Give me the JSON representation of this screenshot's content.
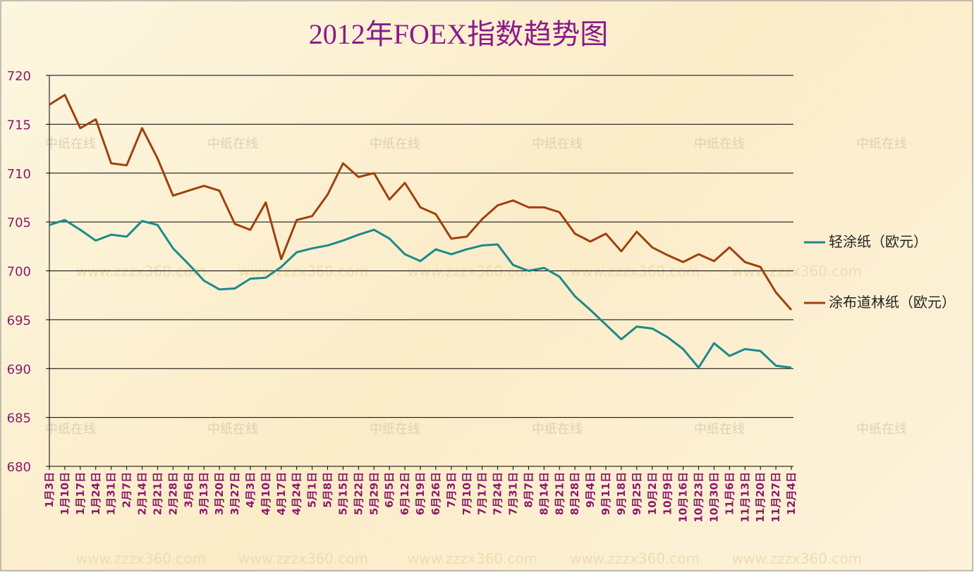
{
  "chart_data": {
    "type": "line",
    "title": "2012年FOEX指数趋势图",
    "categories": [
      "1月3日",
      "1月10日",
      "1月17日",
      "1月24日",
      "1月31日",
      "2月7日",
      "2月14日",
      "2月21日",
      "2月28日",
      "3月6日",
      "3月13日",
      "3月20日",
      "3月27日",
      "4月3日",
      "4月10日",
      "4月17日",
      "4月24日",
      "5月1日",
      "5月8日",
      "5月15日",
      "5月22日",
      "5月29日",
      "6月5日",
      "6月12日",
      "6月19日",
      "6月26日",
      "7月3日",
      "7月10日",
      "7月17日",
      "7月24日",
      "7月31日",
      "8月7日",
      "8月14日",
      "8月21日",
      "8月28日",
      "9月4日",
      "9月11日",
      "9月18日",
      "9月25日",
      "10月2日",
      "10月9日",
      "10月16日",
      "10月23日",
      "10月30日",
      "11月6日",
      "11月13日",
      "11月20日",
      "11月27日",
      "12月4日"
    ],
    "series": [
      {
        "name": "轻涂纸（欧元）",
        "color": "#1a8a8a",
        "values": [
          704.7,
          705.2,
          704.2,
          703.1,
          703.7,
          703.5,
          705.1,
          704.7,
          702.3,
          700.7,
          699.0,
          698.1,
          698.2,
          699.2,
          699.3,
          700.4,
          701.9,
          702.3,
          702.6,
          703.1,
          703.7,
          704.2,
          703.3,
          701.7,
          701.0,
          702.2,
          701.7,
          702.2,
          702.6,
          702.7,
          700.6,
          700.0,
          700.3,
          699.4,
          697.4,
          696.0,
          694.5,
          693.0,
          694.3,
          694.1,
          693.2,
          692.0,
          690.1,
          692.6,
          691.3,
          692.0,
          691.8,
          690.3,
          690.1
        ]
      },
      {
        "name": "涂布道林纸（欧元）",
        "color": "#a0400e",
        "values": [
          717,
          718,
          714.6,
          715.5,
          711,
          710.8,
          714.6,
          711.5,
          707.7,
          708.2,
          708.7,
          708.2,
          704.8,
          704.2,
          707.0,
          701.2,
          705.2,
          705.6,
          707.8,
          711.0,
          709.6,
          710.0,
          707.3,
          709.0,
          706.5,
          705.8,
          703.3,
          703.5,
          705.3,
          706.7,
          707.2,
          706.5,
          706.5,
          706.0,
          703.8,
          703.0,
          703.8,
          702.0,
          704.0,
          702.4,
          701.6,
          700.9,
          701.7,
          701.0,
          702.4,
          700.9,
          700.4,
          697.8,
          696.0
        ]
      }
    ],
    "ylim": [
      680,
      720
    ],
    "yticks": [
      680,
      685,
      690,
      695,
      700,
      705,
      710,
      715,
      720
    ],
    "grid": true,
    "legend": "right",
    "watermarks": [
      "中纸在线",
      "www.zzzx360.com"
    ]
  }
}
